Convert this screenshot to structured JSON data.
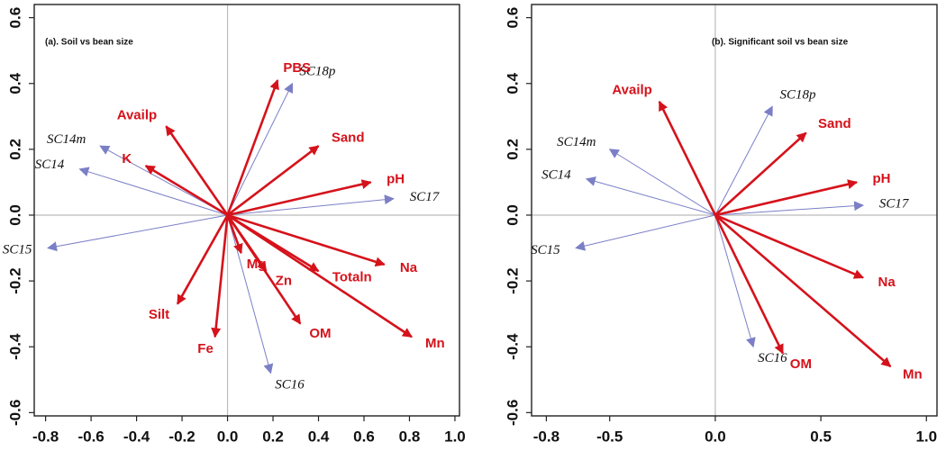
{
  "chart_data": [
    {
      "type": "biplot",
      "title": "(a). Soil vs bean size",
      "xlim": [
        -0.85,
        1.02
      ],
      "ylim": [
        -0.61,
        0.64
      ],
      "xticks": [
        -0.8,
        -0.6,
        -0.4,
        -0.2,
        {
          "value": 0,
          "label": "0.0"
        },
        0.2,
        0.4,
        0.6,
        0.8,
        {
          "value": 1,
          "label": "1.0"
        }
      ],
      "yticks": [
        -0.6,
        -0.4,
        -0.2,
        {
          "value": 0,
          "label": "0.0"
        },
        0.2,
        0.4,
        0.6
      ],
      "zero_lines": true,
      "series": [
        {
          "color": "#d5121b",
          "labels": [
            "PBS",
            "Availp",
            "K",
            "Sand",
            "pH",
            "Na",
            "Totaln",
            "Mg",
            "Zn",
            "OM",
            "Mn",
            "Silt",
            "Fe"
          ],
          "x": [
            0.22,
            -0.27,
            -0.36,
            0.4,
            0.63,
            0.69,
            0.4,
            0.06,
            0.17,
            0.32,
            0.81,
            -0.22,
            -0.055
          ],
          "y": [
            0.41,
            0.27,
            0.15,
            0.21,
            0.1,
            -0.15,
            -0.17,
            -0.115,
            -0.17,
            -0.33,
            -0.37,
            -0.27,
            -0.37
          ]
        },
        {
          "color": "#7b7fc6",
          "labels": [
            "SC18p",
            "SC14m",
            "SC14",
            "SC17",
            "SC15",
            "SC16"
          ],
          "x": [
            0.285,
            -0.56,
            -0.65,
            0.73,
            -0.79,
            0.19
          ],
          "y": [
            0.4,
            0.21,
            0.14,
            0.05,
            -0.1,
            -0.48
          ]
        }
      ]
    },
    {
      "type": "biplot",
      "title": "(b). Significant soil vs bean size",
      "xlim": [
        -0.87,
        1.05
      ],
      "ylim": [
        -0.61,
        0.64
      ],
      "xticks": [
        -0.8,
        -0.5,
        {
          "value": 0,
          "label": "0.0"
        },
        0.5,
        {
          "value": 1,
          "label": "1.0"
        }
      ],
      "yticks": [
        -0.6,
        -0.4,
        -0.2,
        {
          "value": 0,
          "label": "0.0"
        },
        0.2,
        0.4,
        0.6
      ],
      "zero_lines": true,
      "series": [
        {
          "color": "#d5121b",
          "labels": [
            "Availp",
            "Sand",
            "pH",
            "Na",
            "OM",
            "Mn"
          ],
          "x": [
            -0.265,
            0.43,
            0.67,
            0.7,
            0.32,
            0.83
          ],
          "y": [
            0.345,
            0.25,
            0.1,
            -0.19,
            -0.42,
            -0.46
          ]
        },
        {
          "color": "#7b7fc6",
          "labels": [
            "SC18p",
            "SC14m",
            "SC14",
            "SC17",
            "SC15",
            "SC16"
          ],
          "x": [
            0.27,
            -0.5,
            -0.61,
            0.7,
            -0.66,
            0.18
          ],
          "y": [
            0.33,
            0.2,
            0.11,
            0.03,
            -0.1,
            -0.4
          ]
        }
      ]
    }
  ]
}
